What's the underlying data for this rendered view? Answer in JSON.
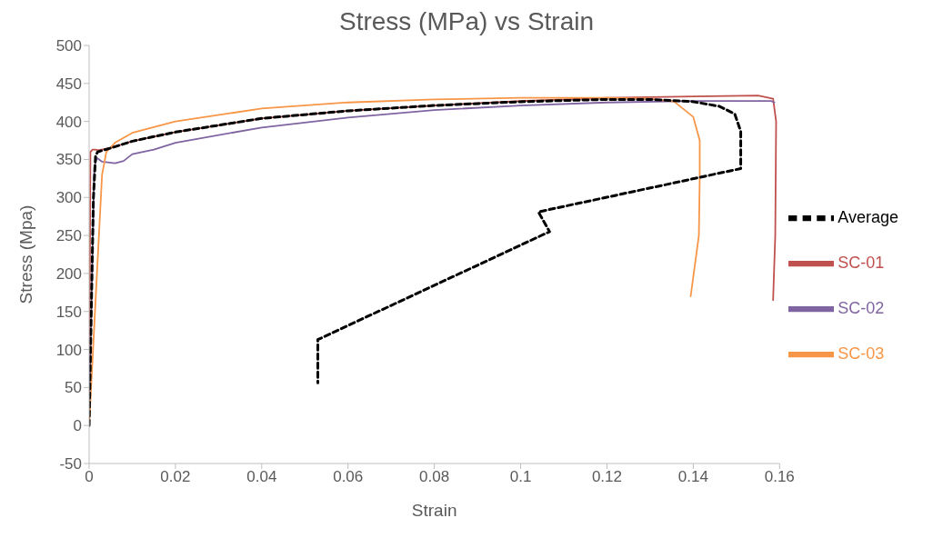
{
  "chart_data": {
    "type": "line",
    "title": "Stress (MPa) vs Strain",
    "xlabel": "Strain",
    "ylabel": "Stress (Mpa)",
    "xlim": [
      0,
      0.16
    ],
    "xticks": [
      0,
      0.02,
      0.04,
      0.06,
      0.08,
      0.1,
      0.12,
      0.14,
      0.16
    ],
    "ylim": [
      -50,
      500
    ],
    "yticks": [
      -50,
      0,
      50,
      100,
      150,
      200,
      250,
      300,
      350,
      400,
      450,
      500
    ],
    "grid": false,
    "legend": "right",
    "marker": "none",
    "series": [
      {
        "name": "SC-01",
        "color": "#c0504d",
        "line_style": "solid",
        "x": [
          0,
          0.0003,
          0.0008,
          0.0015,
          0.002,
          0.005,
          0.01,
          0.02,
          0.04,
          0.06,
          0.08,
          0.1,
          0.12,
          0.14,
          0.155,
          0.1585,
          0.1592,
          0.159,
          0.1585
        ],
        "values": [
          0,
          360,
          363,
          363,
          362,
          365,
          374,
          386,
          404,
          414,
          421,
          427,
          431,
          433,
          434,
          430,
          400,
          250,
          165
        ]
      },
      {
        "name": "SC-02",
        "color": "#8064a2",
        "line_style": "solid",
        "x": [
          0,
          0.0012,
          0.0018,
          0.003,
          0.006,
          0.008,
          0.01,
          0.015,
          0.02,
          0.04,
          0.06,
          0.08,
          0.1,
          0.12,
          0.14,
          0.158,
          0.1588
        ],
        "values": [
          0,
          340,
          352,
          347,
          345,
          348,
          357,
          363,
          372,
          392,
          405,
          415,
          421,
          425,
          427,
          427,
          425
        ]
      },
      {
        "name": "SC-03",
        "color": "#f79646",
        "line_style": "solid",
        "x": [
          0,
          0.003,
          0.004,
          0.006,
          0.01,
          0.02,
          0.04,
          0.06,
          0.08,
          0.1,
          0.12,
          0.13,
          0.1356,
          0.14,
          0.1415,
          0.1415,
          0.1413,
          0.1394
        ],
        "values": [
          0,
          330,
          360,
          372,
          385,
          400,
          417,
          425,
          429,
          431,
          431,
          430,
          426,
          406,
          375,
          326,
          250,
          170
        ]
      },
      {
        "name": "Average",
        "color": "#000000",
        "line_style": "dashed",
        "x": [
          0,
          0.001,
          0.0015,
          0.002,
          0.005,
          0.01,
          0.02,
          0.04,
          0.06,
          0.08,
          0.1,
          0.12,
          0.13,
          0.14,
          0.146,
          0.1496,
          0.151,
          0.151,
          0.1041,
          0.1067,
          0.053,
          0.053
        ],
        "values": [
          0,
          300,
          355,
          360,
          365,
          374,
          386,
          404,
          414,
          421,
          426,
          429,
          429,
          426,
          420,
          410,
          387,
          338,
          281,
          255,
          113,
          56
        ]
      }
    ]
  }
}
